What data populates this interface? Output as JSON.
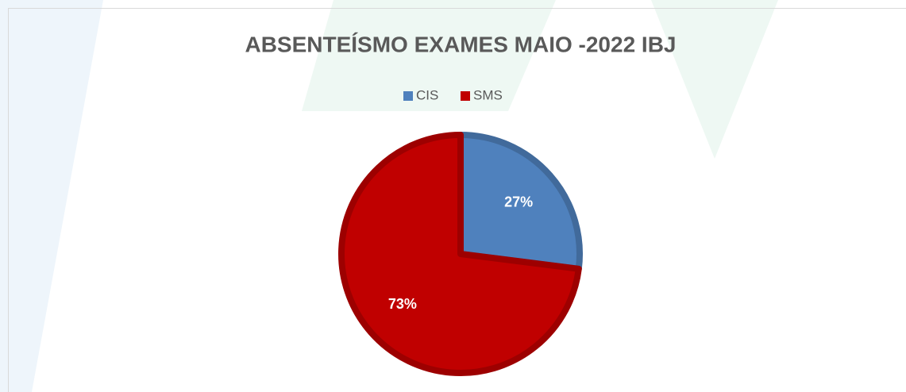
{
  "chart_data": {
    "type": "pie",
    "title": "ABSENTEÍSMO EXAMES MAIO -2022 IBJ",
    "categories": [
      "CIS",
      "SMS"
    ],
    "values": [
      27,
      73
    ],
    "value_labels": [
      "27%",
      "73%"
    ],
    "colors": [
      "#4f81bd",
      "#c00000"
    ],
    "legend": "top"
  }
}
